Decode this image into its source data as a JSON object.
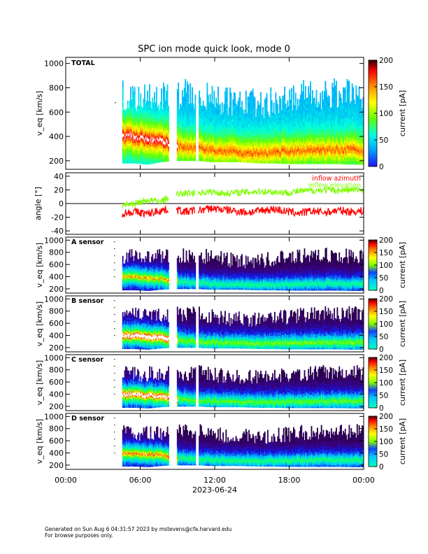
{
  "title": "SPC ion mode quick look, mode 0",
  "footer": {
    "line1": "Generated on Sun Aug  6 04:31:57 2023 by mstevens@cfa.harvard.edu",
    "line2": "For browse purposes only."
  },
  "chart_data": [
    {
      "type": "heatmap",
      "panel_label": "TOTAL",
      "ylabel": "v_eq [km/s]",
      "ylim": [
        130,
        1050
      ],
      "yticks": [
        200,
        400,
        600,
        800,
        1000
      ],
      "colorbar_label": "current [pA]",
      "colorbar_range": [
        0,
        200
      ],
      "colorbar_ticks": [
        0,
        50,
        100,
        150,
        200
      ],
      "colormap": "rainbow (blue-cyan-green-yellow-red)",
      "band_low_kms": [
        180,
        180,
        170,
        190,
        200,
        200,
        200,
        190,
        190,
        190,
        185,
        180,
        180,
        175,
        175,
        175,
        175,
        175,
        170,
        170
      ],
      "band_high_kms": [
        860,
        860,
        860,
        860,
        880,
        880,
        880,
        860,
        820,
        800,
        800,
        800,
        820,
        840,
        860,
        880,
        880,
        880,
        880,
        880
      ],
      "peak_speed_kms": [
        400,
        400,
        380,
        370,
        330,
        310,
        300,
        290,
        280,
        280,
        270,
        270,
        270,
        280,
        280,
        290,
        290,
        290,
        290,
        290
      ]
    },
    {
      "type": "line",
      "ylabel": "angle [°]",
      "ylim": [
        -45,
        45
      ],
      "yticks": [
        -40,
        -20,
        0,
        20,
        40
      ],
      "series": [
        {
          "name": "inflow azimuth",
          "color": "#ff0000",
          "values": [
            -14,
            -12,
            -15,
            -10,
            -8,
            -12,
            -10,
            -7,
            -9,
            -11,
            -13,
            -10,
            -8,
            -12,
            -14,
            -11,
            -13,
            -10,
            -12,
            -11
          ]
        },
        {
          "name": "inflow elevation",
          "color": "#7fff00",
          "values": [
            -2,
            0,
            5,
            3,
            12,
            15,
            16,
            17,
            15,
            16,
            17,
            18,
            17,
            16,
            18,
            19,
            20,
            19,
            20,
            20
          ]
        }
      ]
    },
    {
      "type": "heatmap",
      "panel_label": "A sensor",
      "ylabel": "v_eq [km/s]",
      "ylim": [
        130,
        1050
      ],
      "yticks": [
        200,
        400,
        600,
        800,
        1000
      ],
      "colorbar_label": "current [pA]",
      "colorbar_ticks": [
        0,
        50,
        100,
        150,
        200
      ]
    },
    {
      "type": "heatmap",
      "panel_label": "B sensor",
      "ylabel": "v_eq [km/s]",
      "ylim": [
        130,
        1050
      ],
      "yticks": [
        200,
        400,
        600,
        800,
        1000
      ],
      "colorbar_label": "current [pA]",
      "colorbar_ticks": [
        0,
        50,
        100,
        150,
        200
      ]
    },
    {
      "type": "heatmap",
      "panel_label": "C sensor",
      "ylabel": "v_eq [km/s]",
      "ylim": [
        130,
        1050
      ],
      "yticks": [
        200,
        400,
        600,
        800,
        1000
      ],
      "colorbar_label": "current [pA]",
      "colorbar_ticks": [
        0,
        50,
        100,
        150,
        200
      ]
    },
    {
      "type": "heatmap",
      "panel_label": "D sensor",
      "ylabel": "v_eq [km/s]",
      "ylim": [
        130,
        1050
      ],
      "yticks": [
        200,
        400,
        600,
        800,
        1000
      ],
      "colorbar_label": "current [pA]",
      "colorbar_ticks": [
        0,
        50,
        100,
        150,
        200
      ]
    }
  ],
  "x_axis": {
    "ticks": [
      "00:00",
      "06:00",
      "12:00",
      "18:00",
      "00:00"
    ],
    "tick_hours": [
      0,
      6,
      12,
      18,
      24
    ],
    "xlabel": "2023-06-24",
    "data_start_hour": 4.55,
    "gaps_hours": [
      [
        8.3,
        8.9
      ],
      [
        10.4,
        10.65
      ]
    ]
  },
  "legend": {
    "azimuth": "inflow azimuth",
    "elevation": "inflow elevation"
  }
}
